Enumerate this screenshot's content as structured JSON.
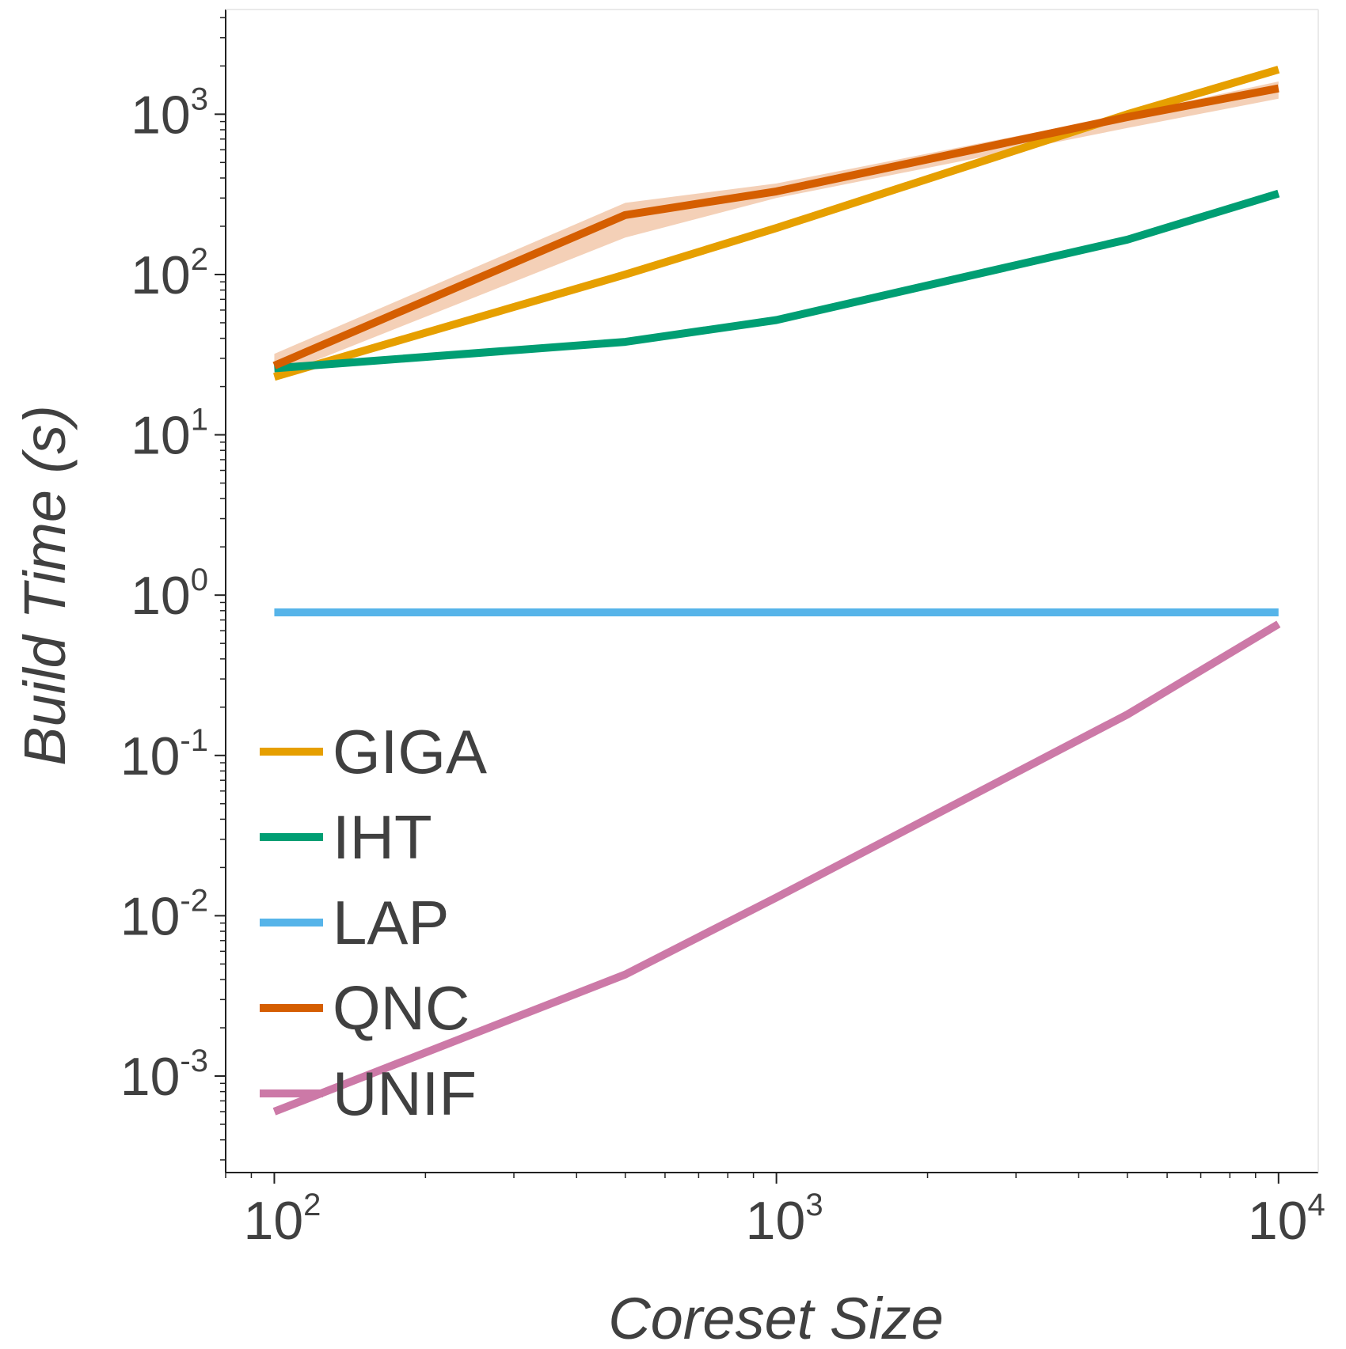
{
  "chart_data": {
    "type": "line",
    "title": "",
    "xlabel": "Coreset Size",
    "ylabel": "Build Time (s)",
    "xscale": "log",
    "yscale": "log",
    "xlim": [
      80,
      12000
    ],
    "ylim": [
      0.00025,
      4500
    ],
    "grid": false,
    "legend_position": "lower-left",
    "x_ticks": [
      {
        "value": 100,
        "base": "10",
        "exp": "2"
      },
      {
        "value": 1000,
        "base": "10",
        "exp": "3"
      },
      {
        "value": 10000,
        "base": "10",
        "exp": "4"
      }
    ],
    "y_ticks": [
      {
        "value": 0.001,
        "base": "10",
        "exp": "-3"
      },
      {
        "value": 0.01,
        "base": "10",
        "exp": "-2"
      },
      {
        "value": 0.1,
        "base": "10",
        "exp": "-1"
      },
      {
        "value": 1,
        "base": "10",
        "exp": "0"
      },
      {
        "value": 10,
        "base": "10",
        "exp": "1"
      },
      {
        "value": 100,
        "base": "10",
        "exp": "2"
      },
      {
        "value": 1000,
        "base": "10",
        "exp": "3"
      }
    ],
    "x": [
      100,
      500,
      1000,
      5000,
      10000
    ],
    "series": [
      {
        "name": "GIGA",
        "color": "#E69F00",
        "values": [
          23,
          100,
          195,
          1000,
          1900
        ]
      },
      {
        "name": "IHT",
        "color": "#009E73",
        "values": [
          26,
          38,
          52,
          165,
          320
        ]
      },
      {
        "name": "LAP",
        "color": "#56B4E9",
        "values": [
          0.78,
          0.78,
          0.78,
          0.78,
          0.78
        ]
      },
      {
        "name": "QNC",
        "color": "#D55E00",
        "values": [
          27,
          235,
          330,
          960,
          1450
        ],
        "band_lower": [
          23,
          170,
          300,
          820,
          1250
        ],
        "band_upper": [
          32,
          280,
          370,
          1000,
          1600
        ],
        "band_color": "#F3CDB3"
      },
      {
        "name": "UNIF",
        "color": "#CC79A7",
        "values": [
          0.0006,
          0.0043,
          0.013,
          0.18,
          0.66
        ]
      }
    ]
  }
}
